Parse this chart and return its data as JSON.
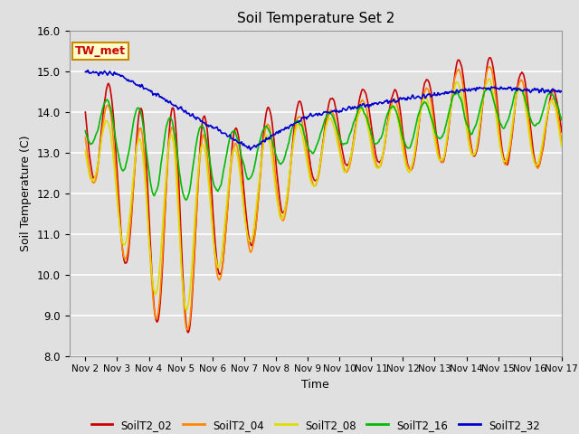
{
  "title": "Soil Temperature Set 2",
  "xlabel": "Time",
  "ylabel": "Soil Temperature (C)",
  "ylim": [
    8.0,
    16.0
  ],
  "yticks": [
    8.0,
    9.0,
    10.0,
    11.0,
    12.0,
    13.0,
    14.0,
    15.0,
    16.0
  ],
  "xlim_days": [
    1.5,
    17.0
  ],
  "xtick_days": [
    2,
    3,
    4,
    5,
    6,
    7,
    8,
    9,
    10,
    11,
    12,
    13,
    14,
    15,
    16,
    17
  ],
  "xtick_labels": [
    "Nov 2",
    "Nov 3",
    "Nov 4",
    "Nov 5",
    "Nov 6",
    "Nov 7",
    "Nov 8",
    "Nov 9",
    "Nov 10",
    "Nov 11",
    "Nov 12",
    "Nov 13",
    "Nov 14",
    "Nov 15",
    "Nov 16",
    "Nov 17"
  ],
  "colors": {
    "SoilT2_02": "#cc0000",
    "SoilT2_04": "#ff8800",
    "SoilT2_08": "#dddd00",
    "SoilT2_16": "#00bb00",
    "SoilT2_32": "#0000cc"
  },
  "legend_box_facecolor": "#ffffcc",
  "legend_box_edgecolor": "#cc8800",
  "legend_text": "TW_met",
  "bg_color": "#e0e0e0",
  "grid_color": "#ffffff",
  "line_width": 1.2,
  "figsize": [
    6.4,
    4.8
  ],
  "dpi": 100
}
